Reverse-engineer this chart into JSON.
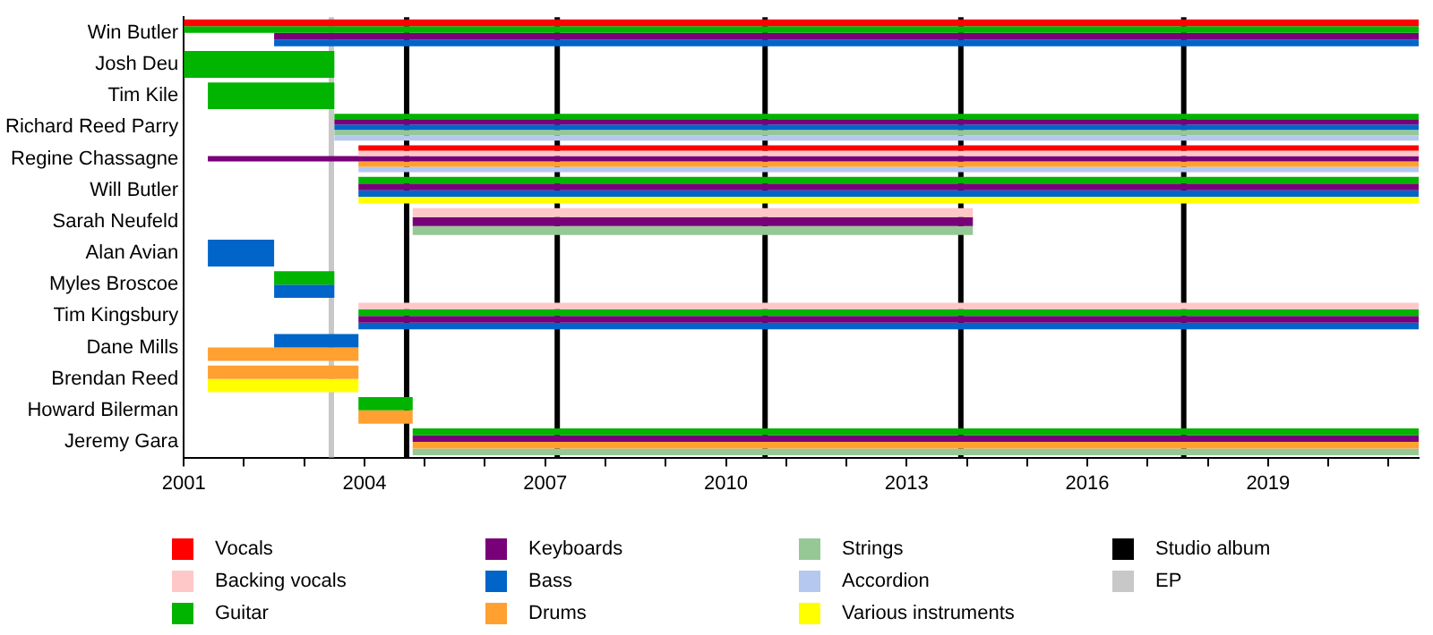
{
  "chart_data": {
    "type": "bar",
    "orientation": "horizontal",
    "categories": [
      "Win Butler",
      "Josh Deu",
      "Tim Kile",
      "Richard Reed Parry",
      "Regine Chassagne",
      "Will Butler",
      "Sarah Neufeld",
      "Alan Avian",
      "Myles Broscoe",
      "Tim Kingsbury",
      "Dane Mills",
      "Brendan Reed",
      "Howard Bilerman",
      "Jeremy Gara"
    ],
    "series": [
      {
        "name": "Vocals",
        "color": "#ff0000",
        "base": [
          2001,
          null,
          null,
          null,
          2003.9,
          null,
          null,
          null,
          null,
          null,
          null,
          null,
          null,
          null
        ],
        "values": [
          20.5,
          null,
          null,
          null,
          17.6,
          null,
          null,
          null,
          null,
          null,
          null,
          null,
          null,
          null
        ]
      },
      {
        "name": "Backing vocals",
        "color": "#ffc8c8",
        "base": [
          null,
          null,
          null,
          null,
          2003.9,
          null,
          2004.8,
          null,
          null,
          2003.9,
          null,
          null,
          null,
          null
        ],
        "values": [
          null,
          null,
          null,
          null,
          17.6,
          null,
          9.3,
          null,
          null,
          17.6,
          null,
          null,
          null,
          null
        ]
      },
      {
        "name": "Guitar",
        "color": "#00b400",
        "base": [
          2001,
          2001,
          2001.4,
          2003.5,
          null,
          2003.9,
          null,
          null,
          2002.5,
          2003.9,
          null,
          null,
          2003.9,
          2004.8
        ],
        "values": [
          20.5,
          2.5,
          2.1,
          18,
          null,
          17.6,
          null,
          null,
          1,
          17.6,
          null,
          null,
          0.9,
          16.7
        ]
      },
      {
        "name": "Keyboards",
        "color": "#780078",
        "base": [
          2002.5,
          null,
          null,
          2003.5,
          2001.4,
          2003.9,
          2004.8,
          null,
          null,
          2003.9,
          null,
          null,
          null,
          2004.8
        ],
        "values": [
          19,
          null,
          null,
          18,
          20.1,
          17.6,
          9.3,
          null,
          null,
          17.6,
          null,
          null,
          null,
          16.7
        ]
      },
      {
        "name": "Bass",
        "color": "#0064c8",
        "base": [
          2002.5,
          null,
          null,
          2003.5,
          null,
          2003.9,
          null,
          2001.4,
          2002.5,
          2003.9,
          2002.5,
          null,
          null,
          null
        ],
        "values": [
          19,
          null,
          null,
          18,
          null,
          17.6,
          null,
          1.1,
          1,
          17.6,
          1.4,
          null,
          null,
          null
        ]
      },
      {
        "name": "Drums",
        "color": "#ffa030",
        "base": [
          null,
          null,
          null,
          null,
          2003.9,
          null,
          null,
          null,
          null,
          null,
          2001.4,
          2001.4,
          2003.9,
          2004.8
        ],
        "values": [
          null,
          null,
          null,
          null,
          17.6,
          null,
          null,
          null,
          null,
          null,
          2.5,
          2.5,
          0.9,
          16.7
        ]
      },
      {
        "name": "Strings",
        "color": "#96c896",
        "base": [
          null,
          null,
          null,
          2003.5,
          null,
          null,
          2004.8,
          null,
          null,
          null,
          null,
          null,
          null,
          2004.8
        ],
        "values": [
          null,
          null,
          null,
          18,
          null,
          null,
          9.3,
          null,
          null,
          null,
          null,
          null,
          null,
          16.7
        ]
      },
      {
        "name": "Accordion",
        "color": "#b4c8f0",
        "base": [
          null,
          null,
          null,
          2003.5,
          2003.9,
          null,
          null,
          null,
          null,
          null,
          null,
          null,
          null,
          null
        ],
        "values": [
          null,
          null,
          null,
          18,
          17.6,
          null,
          null,
          null,
          null,
          null,
          null,
          null,
          null,
          null
        ]
      },
      {
        "name": "Various instruments",
        "color": "#ffff00",
        "base": [
          null,
          null,
          null,
          null,
          null,
          2003.9,
          null,
          null,
          null,
          null,
          null,
          2001.4,
          null,
          null
        ],
        "values": [
          null,
          null,
          null,
          null,
          null,
          17.6,
          null,
          null,
          null,
          null,
          null,
          2.5,
          null,
          null
        ]
      }
    ],
    "xlim": [
      2001,
      2021.5
    ],
    "xticks": [
      2001,
      {
        "value": 2002,
        "label": null
      },
      {
        "value": 2003,
        "label": null
      },
      2004,
      {
        "value": 2005,
        "label": null
      },
      {
        "value": 2006,
        "label": null
      },
      2007,
      {
        "value": 2008,
        "label": null
      },
      {
        "value": 2009,
        "label": null
      },
      2010,
      {
        "value": 2011,
        "label": null
      },
      {
        "value": 2012,
        "label": null
      },
      2013,
      {
        "value": 2014,
        "label": null
      },
      {
        "value": 2015,
        "label": null
      },
      2016,
      {
        "value": 2017,
        "label": null
      },
      {
        "value": 2018,
        "label": null
      },
      2019,
      {
        "value": 2020,
        "label": null
      },
      {
        "value": 2021,
        "label": null
      }
    ],
    "ref_lines": [
      {
        "axis": "x",
        "value": 2003.45,
        "label": "EP",
        "color": "#c8c8c8"
      },
      {
        "axis": "x",
        "value": 2004.7,
        "label": "Studio album",
        "color": "#000000"
      },
      {
        "axis": "x",
        "value": 2007.2,
        "color": "#000000"
      },
      {
        "axis": "x",
        "value": 2010.65,
        "color": "#000000"
      },
      {
        "axis": "x",
        "value": 2013.9,
        "color": "#000000"
      },
      {
        "axis": "x",
        "value": 2017.6,
        "color": "#000000"
      }
    ],
    "grid": false,
    "legend": "bottom"
  }
}
